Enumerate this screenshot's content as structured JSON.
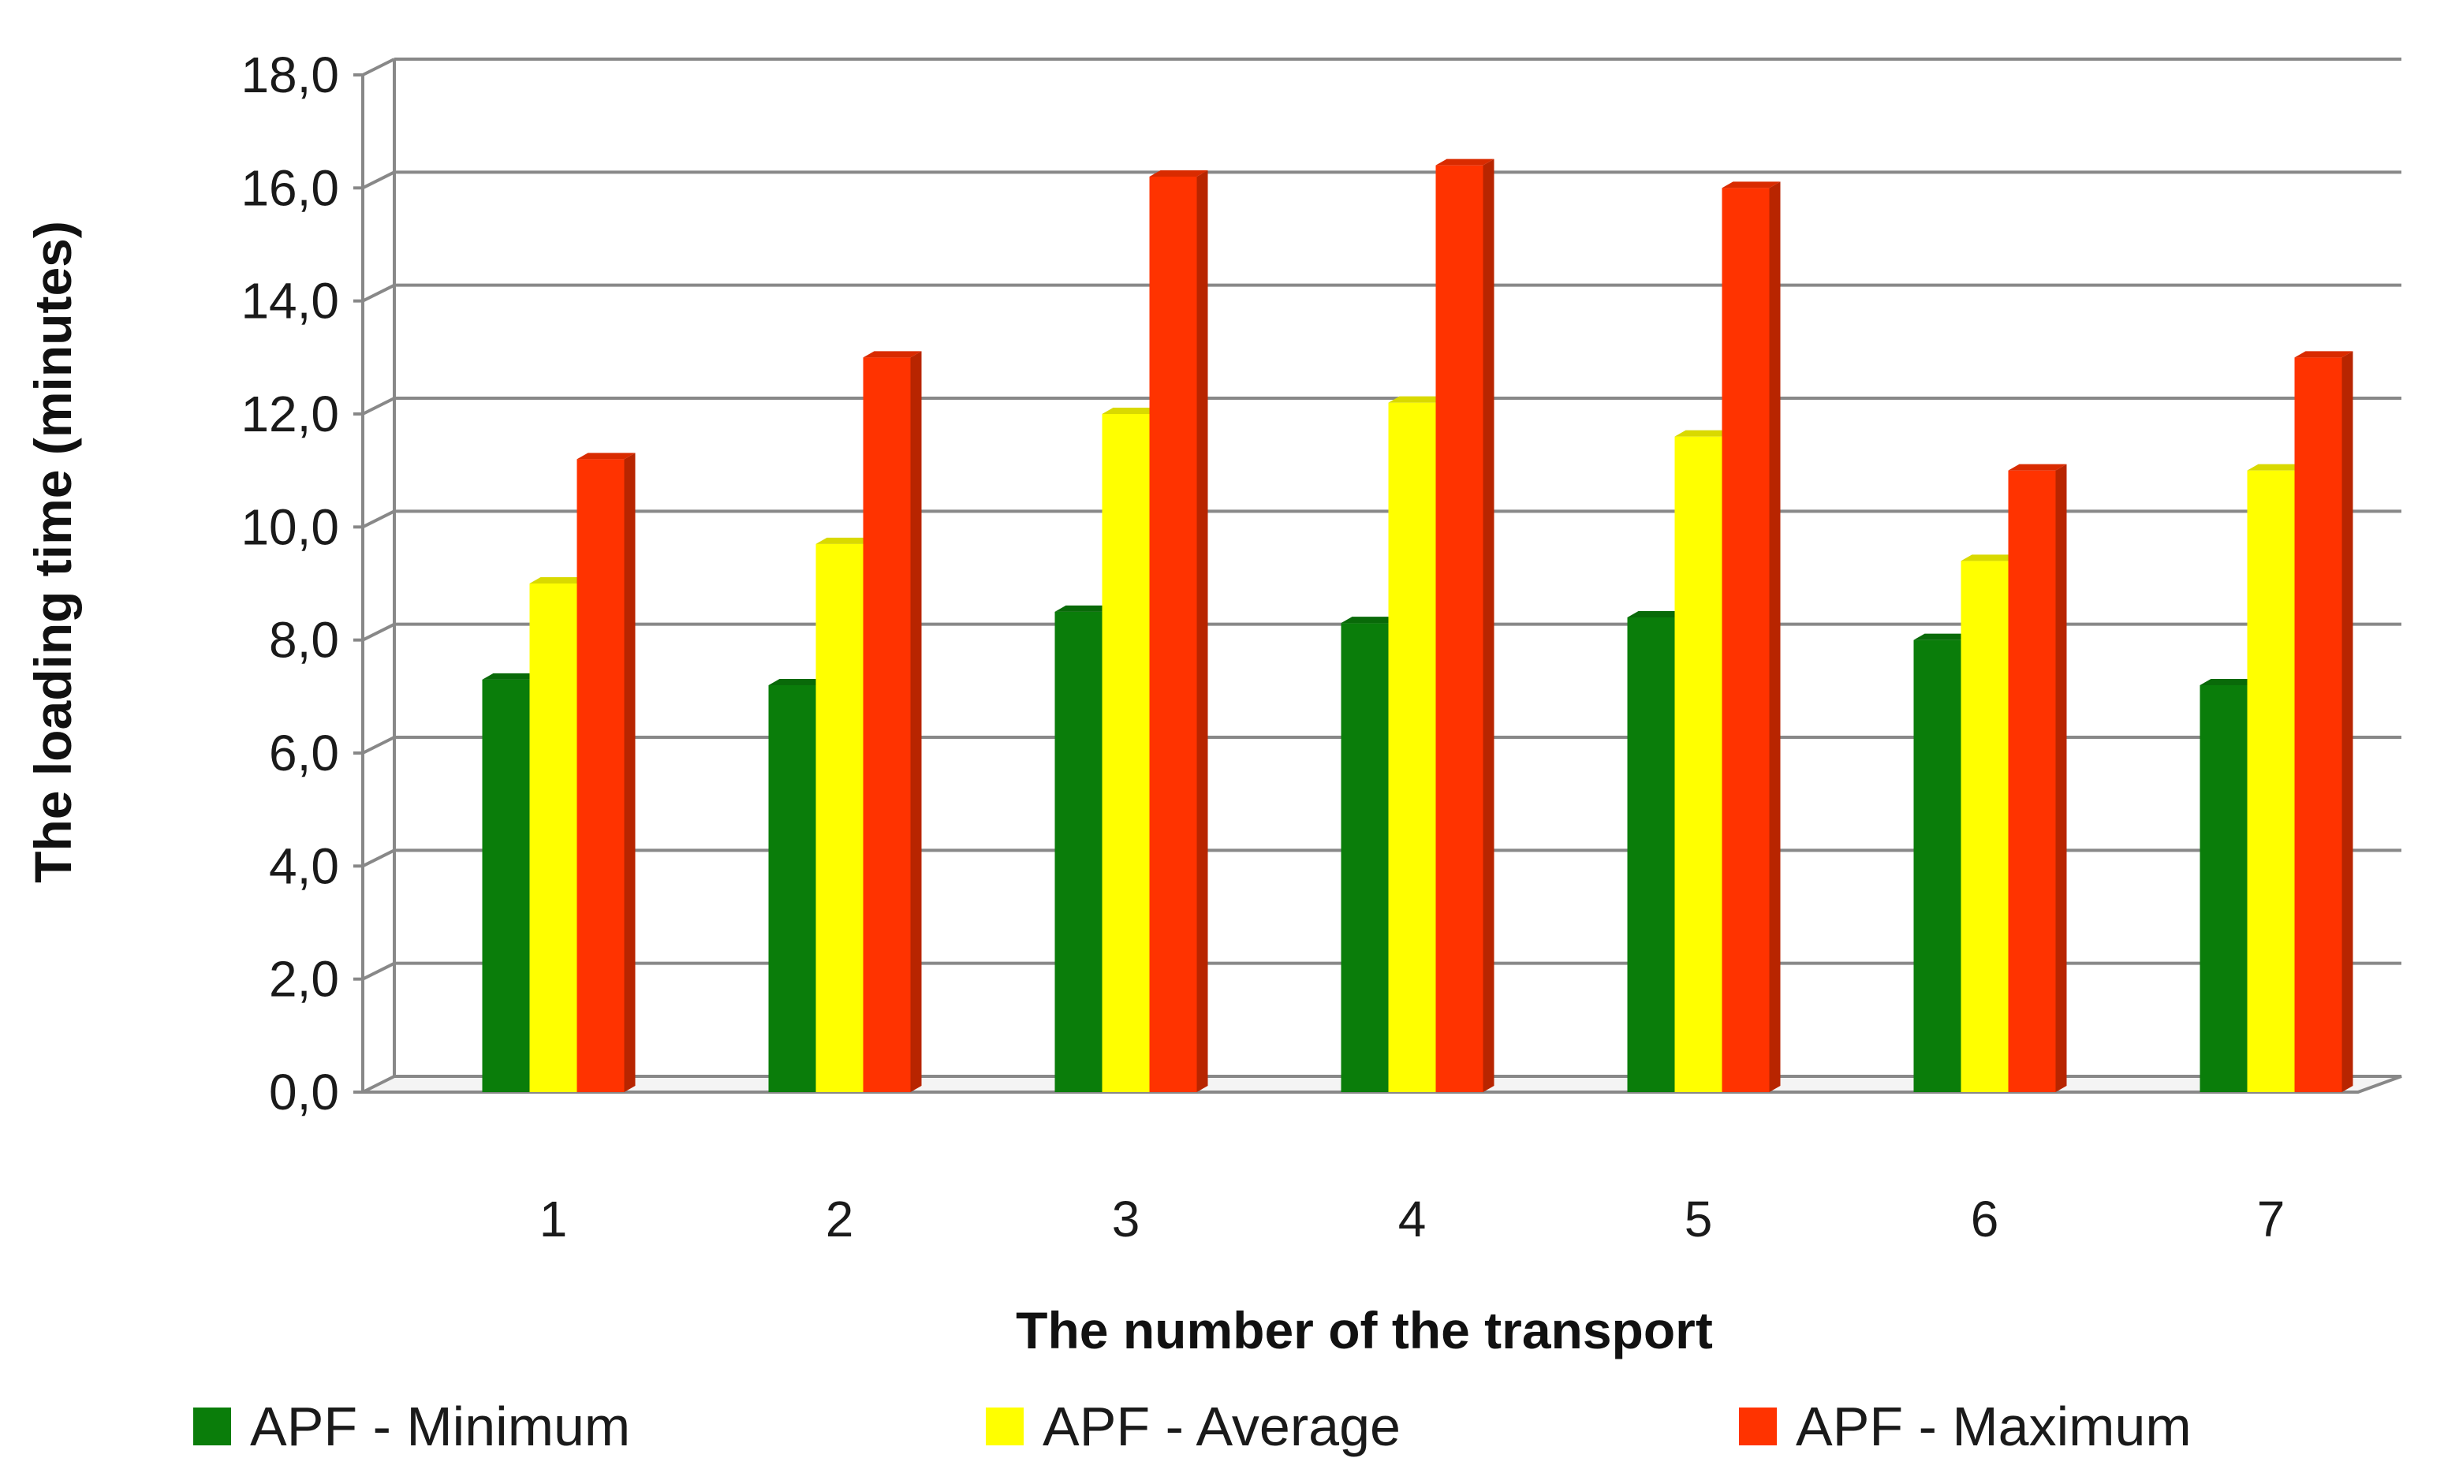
{
  "chart_data": {
    "type": "bar",
    "title": "",
    "xlabel": "The number of the transport",
    "ylabel": "The loading time (minutes)",
    "categories": [
      "1",
      "2",
      "3",
      "4",
      "5",
      "6",
      "7"
    ],
    "y_ticks": [
      "0,0",
      "2,0",
      "4,0",
      "6,0",
      "8,0",
      "10,0",
      "12,0",
      "14,0",
      "16,0",
      "18,0"
    ],
    "ylim": [
      0,
      18
    ],
    "grid": true,
    "legend_position": "bottom",
    "series": [
      {
        "name": "APF - Minimum",
        "color": "#0a7d0a",
        "values": [
          7.3,
          7.2,
          8.5,
          8.3,
          8.4,
          8.0,
          7.2
        ]
      },
      {
        "name": "APF - Average",
        "color": "#ffff00",
        "values": [
          9.0,
          9.7,
          12.0,
          12.2,
          11.6,
          9.4,
          11.0
        ]
      },
      {
        "name": "APF - Maximum",
        "color": "#ff3300",
        "values": [
          11.2,
          13.0,
          16.2,
          16.4,
          16.0,
          11.0,
          13.0
        ]
      }
    ]
  }
}
